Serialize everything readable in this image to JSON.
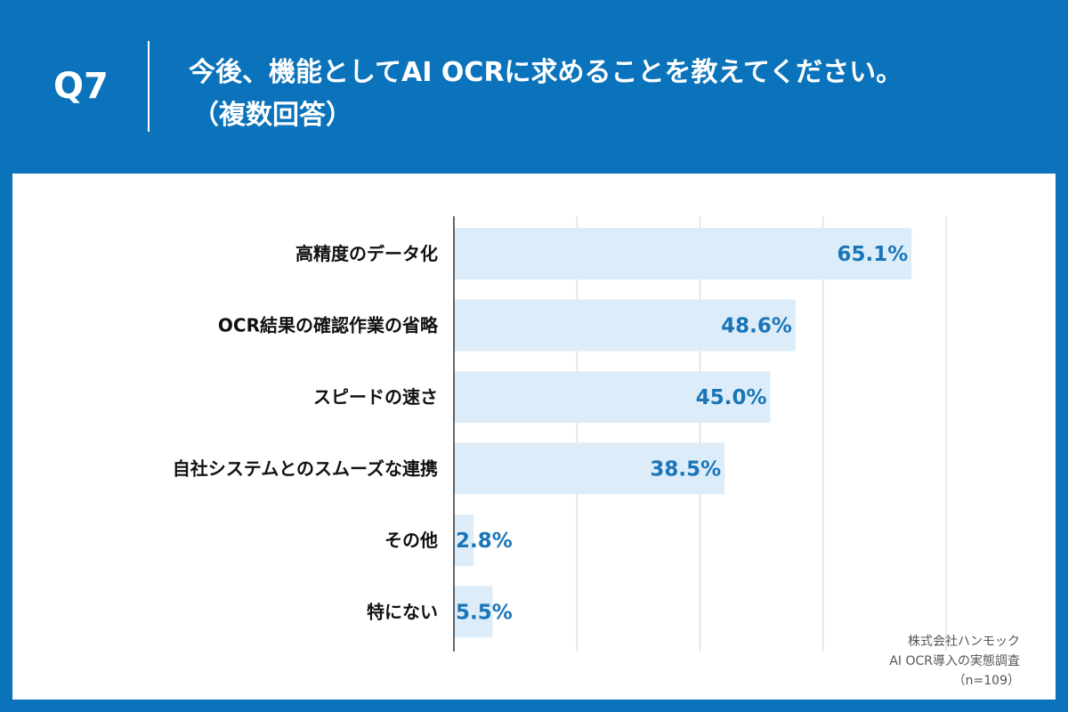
{
  "header": {
    "question_number": "Q7",
    "title_line1": "今後、機能としてAI OCRに求めることを教えてください。",
    "title_line2": "（複数回答）"
  },
  "source": {
    "line1": "株式会社ハンモック",
    "line2": "AI OCR導入の実態調査",
    "line3": "（n=109）"
  },
  "colors": {
    "header_bg": "#0a73bb",
    "bar_fill": "#dcedf9",
    "value_text": "#1a75b8"
  },
  "chart_data": {
    "type": "bar",
    "orientation": "horizontal",
    "categories": [
      "高精度のデータ化",
      "OCR結果の確認作業の省略",
      "スピードの速さ",
      "自社システムとのスムーズな連携",
      "その他",
      "特にない"
    ],
    "values": [
      65.1,
      48.6,
      45.0,
      38.5,
      2.8,
      5.5
    ],
    "value_labels": [
      "65.1%",
      "48.6%",
      "45.0%",
      "38.5%",
      "2.8%",
      "5.5%"
    ],
    "xlim": [
      0,
      80
    ],
    "grid": true
  }
}
